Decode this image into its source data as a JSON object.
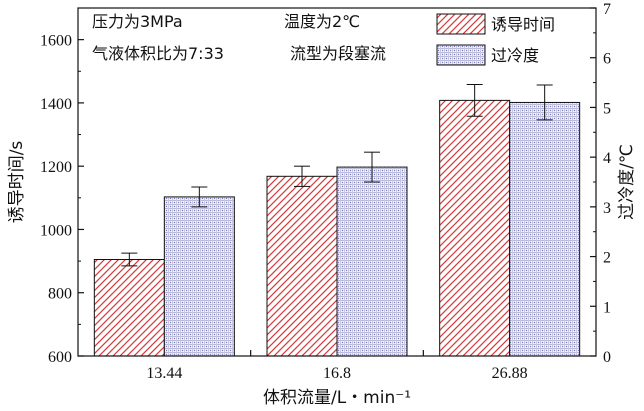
{
  "chart_data": {
    "type": "bar",
    "categories": [
      "13.44",
      "16.8",
      "26.88"
    ],
    "xlabel": "体积流量/L・min⁻¹",
    "ylabel": "诱导时间/s",
    "y2label": "过冷度/℃",
    "ylim": [
      600,
      1700
    ],
    "y2lim": [
      0,
      7
    ],
    "yticks": [
      "600",
      "800",
      "1000",
      "1200",
      "1400",
      "1600"
    ],
    "y2ticks": [
      "0",
      "1",
      "2",
      "3",
      "4",
      "5",
      "6",
      "7"
    ],
    "series": [
      {
        "name": "诱导时间",
        "axis": "left",
        "values": [
          905,
          1168,
          1408
        ],
        "errors": [
          20,
          32,
          50
        ],
        "color": "#d43a3a",
        "pattern": "diagonal-hatch"
      },
      {
        "name": "过冷度",
        "axis": "right",
        "values": [
          3.2,
          3.8,
          5.1
        ],
        "errors": [
          0.2,
          0.3,
          0.35
        ],
        "color": "#6a6aa8",
        "pattern": "dotted-grid"
      }
    ],
    "annotations": [
      "压力为3MPa",
      "温度为2℃",
      "气液体积比为7:33",
      "流型为段塞流"
    ],
    "legend_position": "top-right"
  }
}
